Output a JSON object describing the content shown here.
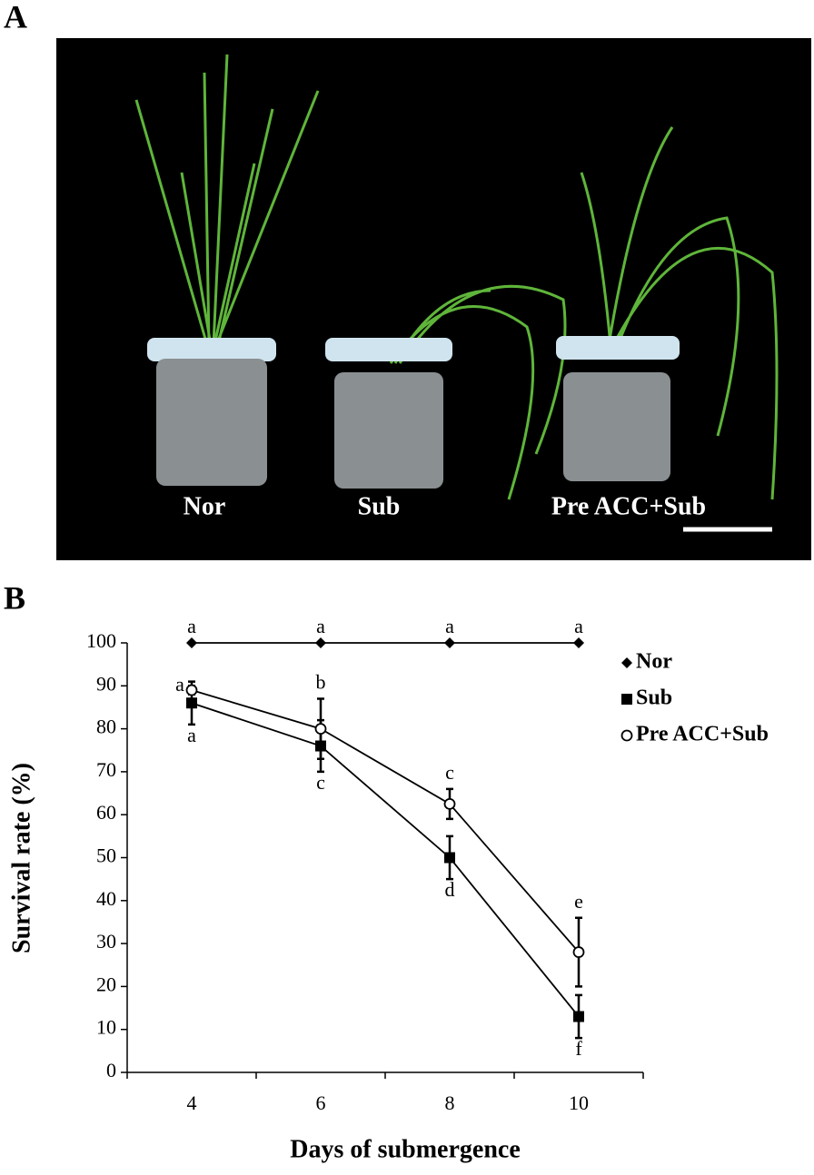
{
  "panels": {
    "a_label": "A",
    "b_label": "B"
  },
  "photo": {
    "labels": [
      "Nor",
      "Sub",
      "Pre ACC+Sub"
    ]
  },
  "chart_data": {
    "type": "line",
    "x_label": "Days of submergence",
    "y_label": "Survival rate (%)",
    "categories": [
      "4",
      "6",
      "8",
      "10"
    ],
    "ylim": [
      0,
      100
    ],
    "yticks": [
      0,
      10,
      20,
      30,
      40,
      50,
      60,
      70,
      80,
      90,
      100
    ],
    "legend": "right",
    "series": [
      {
        "name": "Nor",
        "color": "#000000",
        "marker": "diamond",
        "values": [
          100,
          100,
          100,
          100
        ],
        "letters": [
          "a",
          "a",
          "a",
          "a"
        ],
        "letter_positions": [
          "above",
          "above",
          "above",
          "above"
        ]
      },
      {
        "name": "Sub",
        "color": "#000000",
        "marker": "square",
        "values": [
          86,
          76,
          50,
          13
        ],
        "errors": [
          5,
          6,
          5,
          5
        ],
        "letters": [
          "a",
          "c",
          "d",
          "f"
        ],
        "letter_positions": [
          "below",
          "below",
          "below",
          "below"
        ]
      },
      {
        "name": "Pre ACC+Sub",
        "color": "#000000",
        "marker": "circle",
        "values": [
          89,
          80,
          62.5,
          28
        ],
        "errors": [
          1,
          7,
          3.5,
          8
        ],
        "letters": [
          "a",
          "b",
          "c",
          "e"
        ],
        "letter_positions": [
          "left",
          "above",
          "above",
          "above"
        ]
      }
    ]
  }
}
